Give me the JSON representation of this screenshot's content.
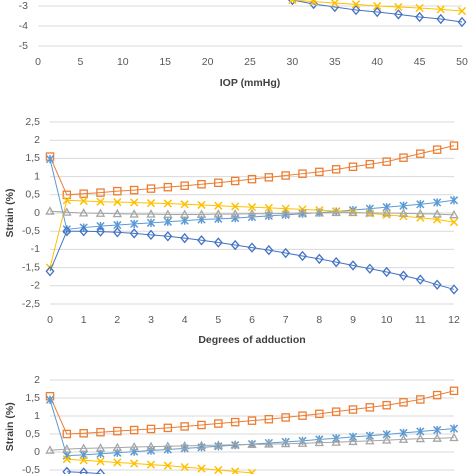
{
  "chart_data": [
    {
      "type": "line",
      "xlabel": "IOP (mmHg)",
      "x": [
        30,
        32.5,
        35,
        37.5,
        40,
        42.5,
        45,
        47.5,
        50
      ],
      "xlim": [
        0,
        50
      ],
      "xticks": [
        0,
        5,
        10,
        15,
        20,
        25,
        30,
        35,
        40,
        45,
        50
      ],
      "ylim": [
        -5,
        -2.7
      ],
      "yticks": [
        -3,
        -4,
        -5
      ],
      "grid": true,
      "series": [
        {
          "color": "#4472c4",
          "marker": "diamond",
          "values": [
            -2.7,
            -2.9,
            -3.05,
            -3.2,
            -3.3,
            -3.42,
            -3.55,
            -3.65,
            -3.8
          ]
        },
        {
          "color": "#ffc000",
          "marker": "x",
          "values": [
            -2.7,
            -2.78,
            -2.85,
            -2.92,
            -3.0,
            -3.05,
            -3.1,
            -3.17,
            -3.25
          ]
        }
      ]
    },
    {
      "type": "line",
      "xlabel": "Degrees of adduction",
      "ylabel": "Strain (%)",
      "x": [
        0,
        0.5,
        1,
        1.5,
        2,
        2.5,
        3,
        3.5,
        4,
        4.5,
        5,
        5.5,
        6,
        6.5,
        7,
        7.5,
        8,
        8.5,
        9,
        9.5,
        10,
        10.5,
        11,
        11.5,
        12
      ],
      "xlim": [
        0,
        12
      ],
      "xticks": [
        0,
        1,
        2,
        3,
        4,
        5,
        6,
        7,
        8,
        9,
        10,
        11,
        12
      ],
      "ylim": [
        -2.5,
        2.5
      ],
      "yticks": [
        {
          "value": 2.5,
          "label": "2,5"
        },
        2,
        {
          "value": 1.5,
          "label": "1,5"
        },
        1,
        {
          "value": 0.5,
          "label": "0,5"
        },
        0,
        {
          "value": -0.5,
          "label": "-0,5"
        },
        -1,
        {
          "value": -1.5,
          "label": "-1,5"
        },
        -2,
        {
          "value": -2.5,
          "label": "-2,5"
        }
      ],
      "grid": true,
      "series": [
        {
          "color": "#ed7d31",
          "marker": "square",
          "values": [
            1.55,
            0.5,
            0.53,
            0.56,
            0.6,
            0.63,
            0.67,
            0.71,
            0.75,
            0.79,
            0.83,
            0.88,
            0.93,
            0.98,
            1.03,
            1.08,
            1.13,
            1.2,
            1.27,
            1.34,
            1.41,
            1.52,
            1.63,
            1.74,
            1.85
          ]
        },
        {
          "color": "#5b9bd5",
          "marker": "asterisk",
          "values": [
            1.48,
            -0.45,
            -0.4,
            -0.36,
            -0.33,
            -0.3,
            -0.27,
            -0.24,
            -0.21,
            -0.18,
            -0.16,
            -0.14,
            -0.11,
            -0.08,
            -0.05,
            -0.02,
            0.01,
            0.04,
            0.08,
            0.12,
            0.16,
            0.2,
            0.24,
            0.29,
            0.35
          ]
        },
        {
          "color": "#ffc000",
          "marker": "x",
          "values": [
            -1.5,
            0.35,
            0.33,
            0.31,
            0.3,
            0.29,
            0.27,
            0.26,
            0.24,
            0.22,
            0.2,
            0.18,
            0.16,
            0.14,
            0.12,
            0.1,
            0.08,
            0.05,
            0.02,
            -0.01,
            -0.05,
            -0.09,
            -0.13,
            -0.18,
            -0.25
          ]
        },
        {
          "color": "#a5a5a5",
          "marker": "triangle",
          "values": [
            0.05,
            0.02,
            0.0,
            -0.01,
            -0.02,
            -0.03,
            -0.03,
            -0.04,
            -0.04,
            -0.04,
            -0.03,
            -0.03,
            -0.02,
            -0.02,
            -0.01,
            0,
            0,
            0.01,
            0.01,
            0,
            0,
            -0.01,
            -0.02,
            -0.03,
            -0.05
          ]
        },
        {
          "color": "#4472c4",
          "marker": "diamond",
          "values": [
            -1.6,
            -0.5,
            -0.5,
            -0.51,
            -0.53,
            -0.56,
            -0.6,
            -0.64,
            -0.69,
            -0.75,
            -0.81,
            -0.88,
            -0.95,
            -1.02,
            -1.1,
            -1.18,
            -1.26,
            -1.35,
            -1.44,
            -1.53,
            -1.62,
            -1.72,
            -1.83,
            -1.97,
            -2.1
          ]
        }
      ]
    },
    {
      "type": "line",
      "ylabel": "Strain (%)",
      "x": [
        0,
        0.5,
        1,
        1.5,
        2,
        2.5,
        3,
        3.5,
        4,
        4.5,
        5,
        5.5,
        6,
        6.5,
        7,
        7.5,
        8,
        8.5,
        9,
        9.5,
        10,
        10.5,
        11,
        11.5,
        12
      ],
      "xlim": [
        0,
        12
      ],
      "ylim": [
        -0.6,
        2
      ],
      "yticks": [
        2,
        {
          "value": 1.5,
          "label": "1,5"
        },
        1,
        {
          "value": 0.5,
          "label": "0,5"
        },
        0,
        {
          "value": -0.5,
          "label": "-0,5"
        }
      ],
      "grid": true,
      "series": [
        {
          "color": "#ed7d31",
          "marker": "square",
          "values": [
            1.55,
            0.5,
            0.52,
            0.55,
            0.58,
            0.61,
            0.64,
            0.67,
            0.71,
            0.75,
            0.79,
            0.83,
            0.87,
            0.91,
            0.96,
            1.01,
            1.06,
            1.12,
            1.18,
            1.24,
            1.3,
            1.38,
            1.46,
            1.58,
            1.7
          ]
        },
        {
          "color": "#5b9bd5",
          "marker": "asterisk",
          "values": [
            1.45,
            -0.1,
            -0.08,
            -0.05,
            -0.02,
            0.01,
            0.04,
            0.07,
            0.1,
            0.13,
            0.16,
            0.19,
            0.22,
            0.25,
            0.28,
            0.31,
            0.35,
            0.38,
            0.42,
            0.45,
            0.49,
            0.53,
            0.57,
            0.61,
            0.65
          ]
        },
        {
          "color": "#a5a5a5",
          "marker": "triangle",
          "values": [
            0.05,
            0.08,
            0.1,
            0.11,
            0.12,
            0.14,
            0.15,
            0.16,
            0.17,
            0.18,
            0.19,
            0.2,
            0.21,
            0.22,
            0.23,
            0.24,
            0.26,
            0.27,
            0.29,
            0.31,
            0.33,
            0.35,
            0.37,
            0.38,
            0.4
          ]
        },
        {
          "color": "#ffc000",
          "marker": "x",
          "values": [
            null,
            -0.2,
            -0.23,
            -0.26,
            -0.29,
            -0.32,
            -0.35,
            -0.38,
            -0.42,
            -0.46,
            -0.5,
            -0.54,
            -0.58,
            null,
            null,
            null,
            null,
            null,
            null,
            null,
            null,
            null,
            null,
            null,
            null
          ]
        },
        {
          "color": "#4472c4",
          "marker": "diamond",
          "values": [
            null,
            -0.55,
            -0.57,
            -0.6,
            null,
            null,
            null,
            null,
            null,
            null,
            null,
            null,
            null,
            null,
            null,
            null,
            null,
            null,
            null,
            null,
            null,
            null,
            null,
            null,
            null
          ]
        }
      ]
    }
  ]
}
